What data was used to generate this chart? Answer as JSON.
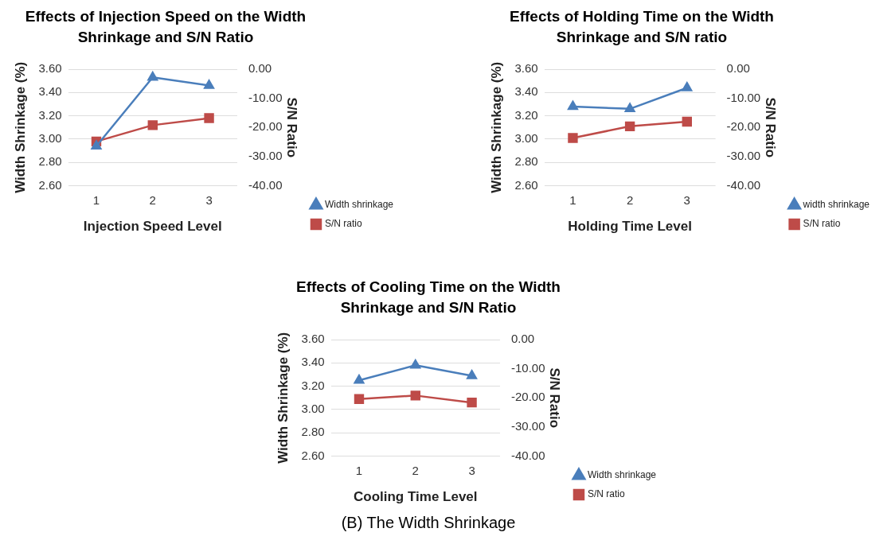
{
  "chart_data": [
    {
      "type": "line",
      "title": "Effects of Injection Speed on the Width Shrinkage and S/N Ratio",
      "xlabel": "Injection Speed Level",
      "ylabel": "Width Shrinkage (%)",
      "y2label": "S/N Ratio",
      "categories": [
        "1",
        "2",
        "3"
      ],
      "series": [
        {
          "name": "Width shrinkage",
          "color": "#4a7ebb",
          "marker": "triangle",
          "values": [
            2.94,
            3.53,
            3.46
          ]
        },
        {
          "name": "S/N ratio",
          "color": "#be4b48",
          "marker": "square",
          "axis": "y2",
          "values": [
            -24.8,
            -19.2,
            -16.8
          ]
        }
      ],
      "ylim": [
        2.6,
        3.6
      ],
      "yticks": [
        {
          "value": 2.6,
          "label": "2.60"
        },
        {
          "value": 2.8,
          "label": "2.80"
        },
        {
          "value": 3.0,
          "label": "3.00"
        },
        {
          "value": 3.2,
          "label": "3.20"
        },
        {
          "value": 3.4,
          "label": "3.40"
        },
        {
          "value": 3.6,
          "label": "3.60"
        }
      ],
      "y2lim": [
        -40,
        0
      ],
      "y2ticks": [
        {
          "value": -40,
          "label": "-40.00"
        },
        {
          "value": -30,
          "label": "-30.00"
        },
        {
          "value": -20,
          "label": "-20.00"
        },
        {
          "value": -10,
          "label": "-10.00"
        },
        {
          "value": 0,
          "label": "0.00"
        }
      ],
      "grid": "y",
      "legend": "bottom right",
      "line_style": "solid"
    },
    {
      "type": "line",
      "title": "Effects of Holding Time on the Width Shrinkage and S/N ratio",
      "xlabel": "Holding Time Level",
      "ylabel": "Width Shrinkage (%)",
      "y2label": "S/N Ratio",
      "categories": [
        "1",
        "2",
        "3"
      ],
      "series": [
        {
          "name": "width shrinkage",
          "color": "#4a7ebb",
          "marker": "triangle",
          "values": [
            3.28,
            3.26,
            3.44
          ]
        },
        {
          "name": "S/N ratio",
          "color": "#be4b48",
          "marker": "square",
          "axis": "y2",
          "values": [
            -23.6,
            -19.6,
            -18.0
          ]
        }
      ],
      "ylim": [
        2.6,
        3.6
      ],
      "yticks": [
        {
          "value": 2.6,
          "label": "2.60"
        },
        {
          "value": 2.8,
          "label": "2.80"
        },
        {
          "value": 3.0,
          "label": "3.00"
        },
        {
          "value": 3.2,
          "label": "3.20"
        },
        {
          "value": 3.4,
          "label": "3.40"
        },
        {
          "value": 3.6,
          "label": "3.60"
        }
      ],
      "y2lim": [
        -40,
        0
      ],
      "y2ticks": [
        {
          "value": -40,
          "label": "-40.00"
        },
        {
          "value": -30,
          "label": "-30.00"
        },
        {
          "value": -20,
          "label": "-20.00"
        },
        {
          "value": -10,
          "label": "-10.00"
        },
        {
          "value": 0,
          "label": "0.00"
        }
      ],
      "grid": "y",
      "legend": "bottom right",
      "line_style": "solid"
    },
    {
      "type": "line",
      "title": "Effects of Cooling Time on the Width Shrinkage and S/N Ratio",
      "xlabel": "Cooling Time Level",
      "ylabel": "Width Shrinkage (%)",
      "y2label": "S/N Ratio",
      "categories": [
        "1",
        "2",
        "3"
      ],
      "series": [
        {
          "name": "Width shrinkage",
          "color": "#4a7ebb",
          "marker": "triangle",
          "values": [
            3.25,
            3.38,
            3.29
          ]
        },
        {
          "name": "S/N ratio",
          "color": "#be4b48",
          "marker": "square",
          "axis": "y2",
          "values": [
            -20.4,
            -19.2,
            -21.6
          ]
        }
      ],
      "ylim": [
        2.6,
        3.6
      ],
      "yticks": [
        {
          "value": 2.6,
          "label": "2.60"
        },
        {
          "value": 2.8,
          "label": "2.80"
        },
        {
          "value": 3.0,
          "label": "3.00"
        },
        {
          "value": 3.2,
          "label": "3.20"
        },
        {
          "value": 3.4,
          "label": "3.40"
        },
        {
          "value": 3.6,
          "label": "3.60"
        }
      ],
      "y2lim": [
        -40,
        0
      ],
      "y2ticks": [
        {
          "value": -40,
          "label": "-40.00"
        },
        {
          "value": -30,
          "label": "-30.00"
        },
        {
          "value": -20,
          "label": "-20.00"
        },
        {
          "value": -10,
          "label": "-10.00"
        },
        {
          "value": 0,
          "label": "0.00"
        }
      ],
      "grid": "y",
      "legend": "bottom right",
      "line_style": "solid",
      "annotations": [
        "(B) The Width Shrinkage"
      ]
    }
  ]
}
